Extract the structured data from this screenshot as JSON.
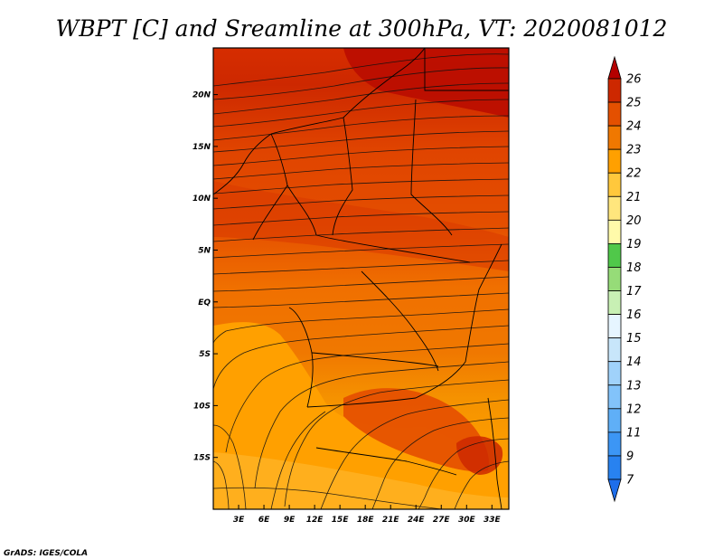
{
  "chart_data": {
    "type": "heatmap",
    "title": "WBPT [C] and Sreamline at 300hPa, VT: 2020081012",
    "variable": "WBPT",
    "units": "C",
    "level": "300hPa",
    "valid_time": "2020081012",
    "overlay": "streamlines",
    "x_range": [
      0,
      35
    ],
    "y_range": [
      -20,
      24.5
    ],
    "x_ticks": [
      {
        "value": 3,
        "label": "3E"
      },
      {
        "value": 6,
        "label": "6E"
      },
      {
        "value": 9,
        "label": "9E"
      },
      {
        "value": 12,
        "label": "12E"
      },
      {
        "value": 15,
        "label": "15E"
      },
      {
        "value": 18,
        "label": "18E"
      },
      {
        "value": 21,
        "label": "21E"
      },
      {
        "value": 24,
        "label": "24E"
      },
      {
        "value": 27,
        "label": "27E"
      },
      {
        "value": 30,
        "label": "30E"
      },
      {
        "value": 33,
        "label": "33E"
      }
    ],
    "y_ticks": [
      {
        "value": 20,
        "label": "20N"
      },
      {
        "value": 15,
        "label": "15N"
      },
      {
        "value": 10,
        "label": "10N"
      },
      {
        "value": 5,
        "label": "5N"
      },
      {
        "value": 0,
        "label": "EQ"
      },
      {
        "value": -5,
        "label": "5S"
      },
      {
        "value": -10,
        "label": "10S"
      },
      {
        "value": -15,
        "label": "15S"
      }
    ],
    "colorbar": {
      "labels": [
        "7",
        "9",
        "11",
        "12",
        "13",
        "14",
        "15",
        "16",
        "17",
        "18",
        "19",
        "20",
        "21",
        "22",
        "23",
        "24",
        "25",
        "26"
      ],
      "colors": [
        "#1e6eeb",
        "#2882f0",
        "#3c96f5",
        "#5faff7",
        "#82c3fa",
        "#a0d2fa",
        "#c8e6fa",
        "#e6f5ff",
        "#c8f0b4",
        "#96dc78",
        "#50c84a",
        "#fffaaa",
        "#ffe67d",
        "#ffc83c",
        "#ffa000",
        "#f07800",
        "#e45000",
        "#cd2800",
        "#b40000"
      ]
    }
  },
  "credit": "GrADS: IGES/COLA"
}
